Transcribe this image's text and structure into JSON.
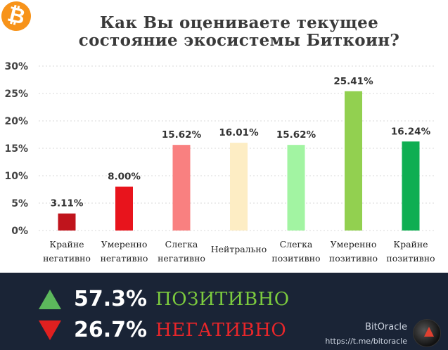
{
  "title_line1": "Как Вы оцениваете текущее",
  "title_line2": "состояние экосистемы Биткоин?",
  "logo_glyph": "₿",
  "chart_data": {
    "type": "bar",
    "categories": [
      [
        "Крайне",
        "негативно"
      ],
      [
        "Умеренно",
        "негативно"
      ],
      [
        "Слегка",
        "негативно"
      ],
      [
        "Нейтрально"
      ],
      [
        "Слегка",
        "позитивно"
      ],
      [
        "Умеренно",
        "позитивно"
      ],
      [
        "Крайне",
        "позитивно"
      ]
    ],
    "values": [
      3.11,
      8.0,
      15.62,
      16.01,
      15.62,
      25.41,
      16.24
    ],
    "value_labels": [
      "3.11%",
      "8.00%",
      "15.62%",
      "16.01%",
      "15.62%",
      "25.41%",
      "16.24%"
    ],
    "colors": [
      "#c0141c",
      "#e8141c",
      "#f98080",
      "#fdedc4",
      "#a2f4a2",
      "#92d050",
      "#0fae52"
    ],
    "yticks": [
      0,
      5,
      10,
      15,
      20,
      25,
      30
    ],
    "ytick_labels": [
      "0%",
      "5%",
      "10%",
      "15%",
      "20%",
      "25%",
      "30%"
    ],
    "ylim": [
      0,
      30
    ],
    "grid": true
  },
  "summary": {
    "positive_pct": "57.3%",
    "positive_label": "ПОЗИТИВНО",
    "negative_pct": "26.7%",
    "negative_label": "НЕГАТИВНО"
  },
  "brand": {
    "name": "BitOracle",
    "url": "https://t.me/bitoracle"
  }
}
